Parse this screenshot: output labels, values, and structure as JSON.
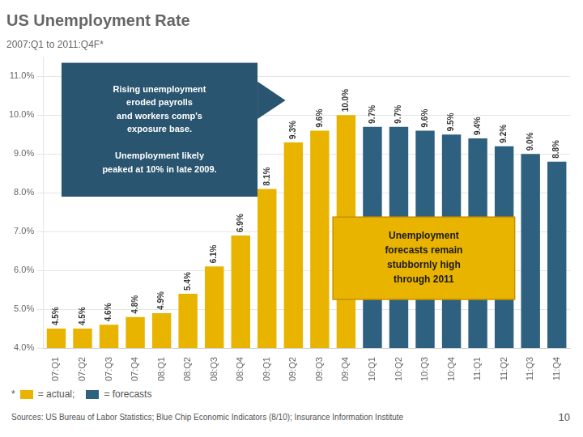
{
  "chart_data": {
    "type": "bar",
    "title": "US Unemployment Rate",
    "subtitle": "2007:Q1 to 2011:Q4F*",
    "categories": [
      "07:Q1",
      "07:Q2",
      "07:Q3",
      "07:Q4",
      "08:Q1",
      "08:Q2",
      "08:Q3",
      "08:Q4",
      "09:Q1",
      "09:Q2",
      "09:Q3",
      "09:Q4",
      "10:Q1",
      "10:Q2",
      "10:Q3",
      "10:Q4",
      "11:Q1",
      "11:Q2",
      "11:Q3",
      "11:Q4"
    ],
    "series": [
      {
        "name": "= actual;",
        "color": "#E8B400",
        "values": [
          4.5,
          4.5,
          4.6,
          4.8,
          4.9,
          5.4,
          6.1,
          6.9,
          8.1,
          9.3,
          9.6,
          10.0,
          null,
          null,
          null,
          null,
          null,
          null,
          null,
          null
        ],
        "value_labels": [
          "4.5%",
          "4.5%",
          "4.6%",
          "4.8%",
          "4.9%",
          "5.4%",
          "6.1%",
          "6.9%",
          "8.1%",
          "9.3%",
          "9.6%",
          "10.0%",
          null,
          null,
          null,
          null,
          null,
          null,
          null,
          null
        ]
      },
      {
        "name": "= forecasts",
        "color": "#2E6080",
        "values": [
          null,
          null,
          null,
          null,
          null,
          null,
          null,
          null,
          null,
          null,
          null,
          null,
          9.7,
          9.7,
          9.6,
          9.5,
          9.4,
          9.2,
          9.0,
          8.8
        ],
        "value_labels": [
          null,
          null,
          null,
          null,
          null,
          null,
          null,
          null,
          null,
          null,
          null,
          null,
          "9.7%",
          "9.7%",
          "9.6%",
          "9.5%",
          "9.4%",
          "9.2%",
          "9.0%",
          "8.8%"
        ]
      }
    ],
    "data_labels": true,
    "ylim": [
      4.0,
      11.5
    ],
    "yticks": [
      {
        "value": 4.0,
        "label": "4.0%"
      },
      {
        "value": 5.0,
        "label": "5.0%"
      },
      {
        "value": 6.0,
        "label": "6.0%"
      },
      {
        "value": 7.0,
        "label": "7.0%"
      },
      {
        "value": 8.0,
        "label": "8.0%"
      },
      {
        "value": 9.0,
        "label": "9.0%"
      },
      {
        "value": 10.0,
        "label": "10.0%"
      },
      {
        "value": 11.0,
        "label": "11.0%"
      }
    ],
    "grid": true,
    "legend": "bottom",
    "footnote_mark": "*",
    "annotations": [
      "Rising unemployment\neroded payrolls\nand workers comp's\nexposure base.\n\nUnemployment likely\npeaked at 10% in late 2009.",
      "Unemployment\nforecasts remain\nstubbornly high\nthrough 2011"
    ],
    "source": "Sources: US Bureau of Labor Statistics; Blue Chip Economic Indicators (8/10); Insurance Information Institute",
    "page_number": "10"
  }
}
